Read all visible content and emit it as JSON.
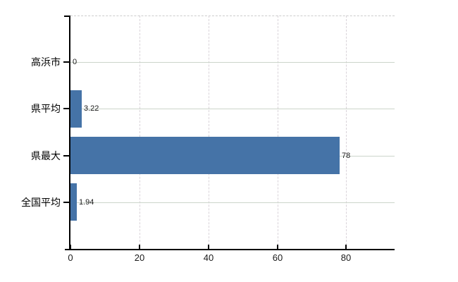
{
  "chart_data": {
    "type": "bar",
    "orientation": "horizontal",
    "title": "",
    "xlabel": "",
    "ylabel": "",
    "categories": [
      "高浜市",
      "県平均",
      "県最大",
      "全国平均"
    ],
    "values": [
      0,
      3.22,
      78,
      1.94
    ],
    "value_labels": [
      "0",
      "3.22",
      "78",
      "1.94"
    ],
    "x_ticks": [
      0,
      20,
      40,
      60,
      80
    ],
    "x_tick_labels": [
      "0",
      "20",
      "40",
      "60",
      "80"
    ],
    "xlim": [
      0,
      94
    ],
    "legend": "none",
    "grid": "dashed vertical lines at x ticks; solid light horizontal line at each category center; dashed top plot border"
  },
  "colors": {
    "bar": "#4573a7",
    "axis": "#000000",
    "grid_vertical": "#d9d3d9",
    "grid_horizontal": "#ccd5cb",
    "plot_top_border": "#cccccc",
    "text": "#1a1a1a",
    "background": "#ffffff"
  }
}
